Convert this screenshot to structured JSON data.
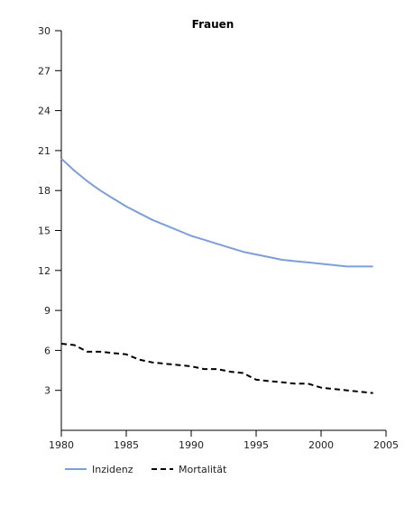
{
  "chart_data": {
    "type": "line",
    "title": "Frauen",
    "xlabel": "",
    "ylabel": "",
    "xlim": [
      1980,
      2005
    ],
    "ylim": [
      0,
      30
    ],
    "x_ticks": [
      1980,
      1985,
      1990,
      1995,
      2000,
      2005
    ],
    "y_ticks": [
      3,
      6,
      9,
      12,
      15,
      18,
      21,
      24,
      27,
      30
    ],
    "grid": false,
    "legend_position": "bottom-left",
    "series": [
      {
        "name": "Inzidenz",
        "style": "solid",
        "color": "#7b9fd6",
        "x": [
          1980,
          1981,
          1982,
          1983,
          1984,
          1985,
          1986,
          1987,
          1988,
          1989,
          1990,
          1991,
          1992,
          1993,
          1994,
          1995,
          1996,
          1997,
          1998,
          1999,
          2000,
          2001,
          2002,
          2003,
          2004
        ],
        "y": [
          20.4,
          19.5,
          18.7,
          18.0,
          17.4,
          16.8,
          16.3,
          15.8,
          15.4,
          15.0,
          14.6,
          14.3,
          14.0,
          13.7,
          13.4,
          13.2,
          13.0,
          12.8,
          12.7,
          12.6,
          12.5,
          12.4,
          12.3,
          12.3,
          12.3
        ]
      },
      {
        "name": "Mortalität",
        "style": "dashed",
        "color": "#000000",
        "x": [
          1980,
          1981,
          1982,
          1983,
          1984,
          1985,
          1986,
          1987,
          1988,
          1989,
          1990,
          1991,
          1992,
          1993,
          1994,
          1995,
          1996,
          1997,
          1998,
          1999,
          2000,
          2001,
          2002,
          2003,
          2004
        ],
        "y": [
          6.5,
          6.4,
          5.9,
          5.9,
          5.8,
          5.7,
          5.3,
          5.1,
          5.0,
          4.9,
          4.8,
          4.6,
          4.6,
          4.4,
          4.3,
          3.8,
          3.7,
          3.6,
          3.5,
          3.5,
          3.2,
          3.1,
          3.0,
          2.9,
          2.8
        ]
      }
    ]
  }
}
